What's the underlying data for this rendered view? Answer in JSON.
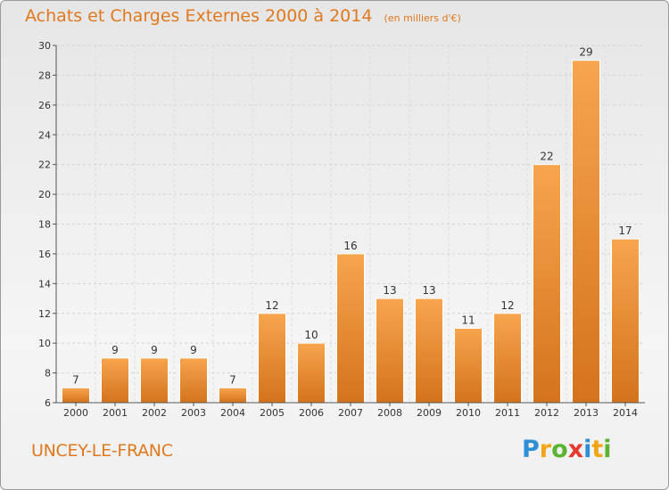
{
  "title": "Achats et Charges Externes 2000 à 2014",
  "subtitle": "(en milliers d'€)",
  "commune": "UNCEY-LE-FRANC",
  "logo": {
    "letters": [
      "P",
      "r",
      "o",
      "x",
      "i",
      "t",
      "i"
    ],
    "colors": [
      "#2f8fd6",
      "#f2a516",
      "#59b431",
      "#e63a2e",
      "#2f8fd6",
      "#f2a516",
      "#59b431"
    ]
  },
  "colors": {
    "accent": "#e0781e",
    "bar_light": "#f7a54e",
    "bar_dark": "#d4731d"
  },
  "chart_data": {
    "type": "bar",
    "categories": [
      "2000",
      "2001",
      "2002",
      "2003",
      "2004",
      "2005",
      "2006",
      "2007",
      "2008",
      "2009",
      "2010",
      "2011",
      "2012",
      "2013",
      "2014"
    ],
    "values": [
      7,
      9,
      9,
      9,
      7,
      12,
      10,
      16,
      13,
      13,
      11,
      12,
      22,
      29,
      17
    ],
    "ylim": [
      6,
      30
    ],
    "yticks": [
      6,
      8,
      10,
      12,
      14,
      16,
      18,
      20,
      22,
      24,
      26,
      28,
      30
    ],
    "grid": true
  }
}
